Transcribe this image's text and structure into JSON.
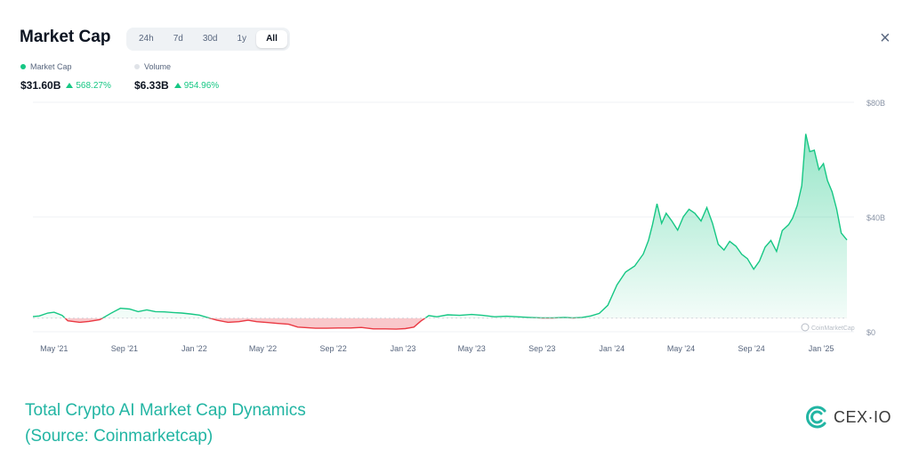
{
  "header": {
    "title": "Market Cap",
    "ranges": [
      "24h",
      "7d",
      "30d",
      "1y",
      "All"
    ],
    "active_range": "All",
    "close_label": "×"
  },
  "legend": {
    "market_cap": {
      "label": "Market Cap",
      "value": "$31.60B",
      "change": "568.27%",
      "color": "#16c784"
    },
    "volume": {
      "label": "Volume",
      "value": "$6.33B",
      "change": "954.96%",
      "color": "#e0e3e8"
    }
  },
  "chart_data": {
    "type": "area",
    "title": "",
    "xlabel": "",
    "ylabel": "",
    "y_unit": "B",
    "ylim": [
      0,
      80
    ],
    "y_ticks": [
      "$0",
      "$40B",
      "$80B"
    ],
    "y_tick_values": [
      0,
      40,
      80
    ],
    "x_ticks": [
      "May '21",
      "Sep '21",
      "Jan '22",
      "May '22",
      "Sep '22",
      "Jan '23",
      "May '23",
      "Sep '23",
      "Jan '24",
      "May '24",
      "Sep '24",
      "Jan '25"
    ],
    "x_tick_dates": [
      "2021-05-01",
      "2021-09-01",
      "2022-01-01",
      "2022-05-01",
      "2022-09-01",
      "2023-01-01",
      "2023-05-01",
      "2023-09-01",
      "2024-01-01",
      "2024-05-01",
      "2024-09-01",
      "2025-01-01"
    ],
    "baseline": 4.73,
    "colors": {
      "above": "#16c784",
      "below": "#ea3943"
    },
    "grid": true,
    "watermark": "CoinMarketCap",
    "series": [
      {
        "name": "Market Cap",
        "x": [
          "2021-03-25",
          "2021-04-05",
          "2021-04-20",
          "2021-05-01",
          "2021-05-15",
          "2021-05-25",
          "2021-06-15",
          "2021-07-01",
          "2021-07-20",
          "2021-08-10",
          "2021-08-25",
          "2021-09-10",
          "2021-09-25",
          "2021-10-10",
          "2021-10-25",
          "2021-11-10",
          "2021-11-25",
          "2021-12-10",
          "2021-12-25",
          "2022-01-10",
          "2022-01-25",
          "2022-02-10",
          "2022-03-01",
          "2022-03-20",
          "2022-04-05",
          "2022-04-20",
          "2022-05-10",
          "2022-05-25",
          "2022-06-15",
          "2022-07-01",
          "2022-08-01",
          "2022-08-20",
          "2022-09-10",
          "2022-10-01",
          "2022-10-20",
          "2022-11-10",
          "2022-12-01",
          "2022-12-20",
          "2023-01-05",
          "2023-01-20",
          "2023-02-01",
          "2023-02-15",
          "2023-03-01",
          "2023-03-20",
          "2023-04-10",
          "2023-05-01",
          "2023-05-20",
          "2023-06-10",
          "2023-07-01",
          "2023-07-20",
          "2023-08-10",
          "2023-09-01",
          "2023-09-20",
          "2023-10-10",
          "2023-10-25",
          "2023-11-10",
          "2023-11-25",
          "2023-12-10",
          "2023-12-25",
          "2024-01-10",
          "2024-01-25",
          "2024-02-10",
          "2024-02-25",
          "2024-03-05",
          "2024-03-12",
          "2024-03-20",
          "2024-03-28",
          "2024-04-05",
          "2024-04-15",
          "2024-04-25",
          "2024-05-05",
          "2024-05-15",
          "2024-05-25",
          "2024-06-05",
          "2024-06-15",
          "2024-06-25",
          "2024-07-05",
          "2024-07-15",
          "2024-07-25",
          "2024-08-05",
          "2024-08-15",
          "2024-08-25",
          "2024-09-05",
          "2024-09-15",
          "2024-09-25",
          "2024-10-05",
          "2024-10-15",
          "2024-10-25",
          "2024-11-05",
          "2024-11-12",
          "2024-11-20",
          "2024-11-28",
          "2024-12-05",
          "2024-12-12",
          "2024-12-20",
          "2024-12-28",
          "2025-01-05",
          "2025-01-12",
          "2025-01-20",
          "2025-01-28",
          "2025-02-05",
          "2025-02-15"
        ],
        "y": [
          5.3,
          5.5,
          6.5,
          6.8,
          5.7,
          3.8,
          3.3,
          3.6,
          4.2,
          6.6,
          8.2,
          7.9,
          7.0,
          7.6,
          7.0,
          6.9,
          6.7,
          6.5,
          6.2,
          5.8,
          4.9,
          4.0,
          3.3,
          3.5,
          4.0,
          3.5,
          3.2,
          2.9,
          2.6,
          1.6,
          1.2,
          1.2,
          1.3,
          1.3,
          1.5,
          1.0,
          1.0,
          0.9,
          1.1,
          1.6,
          3.7,
          5.6,
          5.2,
          5.9,
          5.7,
          6.0,
          5.7,
          5.2,
          5.4,
          5.2,
          5.0,
          4.8,
          4.8,
          5.0,
          4.8,
          5.0,
          5.5,
          6.4,
          9.2,
          16.3,
          20.8,
          22.9,
          27.1,
          31.8,
          37.3,
          44.6,
          37.8,
          41.3,
          38.6,
          35.4,
          40.1,
          42.7,
          41.3,
          38.6,
          43.3,
          37.8,
          30.5,
          28.5,
          31.5,
          29.8,
          27.0,
          25.5,
          21.8,
          24.6,
          29.5,
          31.8,
          28.0,
          35.3,
          37.3,
          39.6,
          44.0,
          50.9,
          69.0,
          62.8,
          63.3,
          56.5,
          58.6,
          52.7,
          48.8,
          42.8,
          34.4,
          32.0
        ]
      }
    ]
  },
  "caption": {
    "line1": "Total Crypto AI Market Cap Dynamics",
    "line2": "(Source: Coinmarketcap)"
  },
  "brand": {
    "name": "CEX·IO",
    "color": "#22b5a3"
  }
}
